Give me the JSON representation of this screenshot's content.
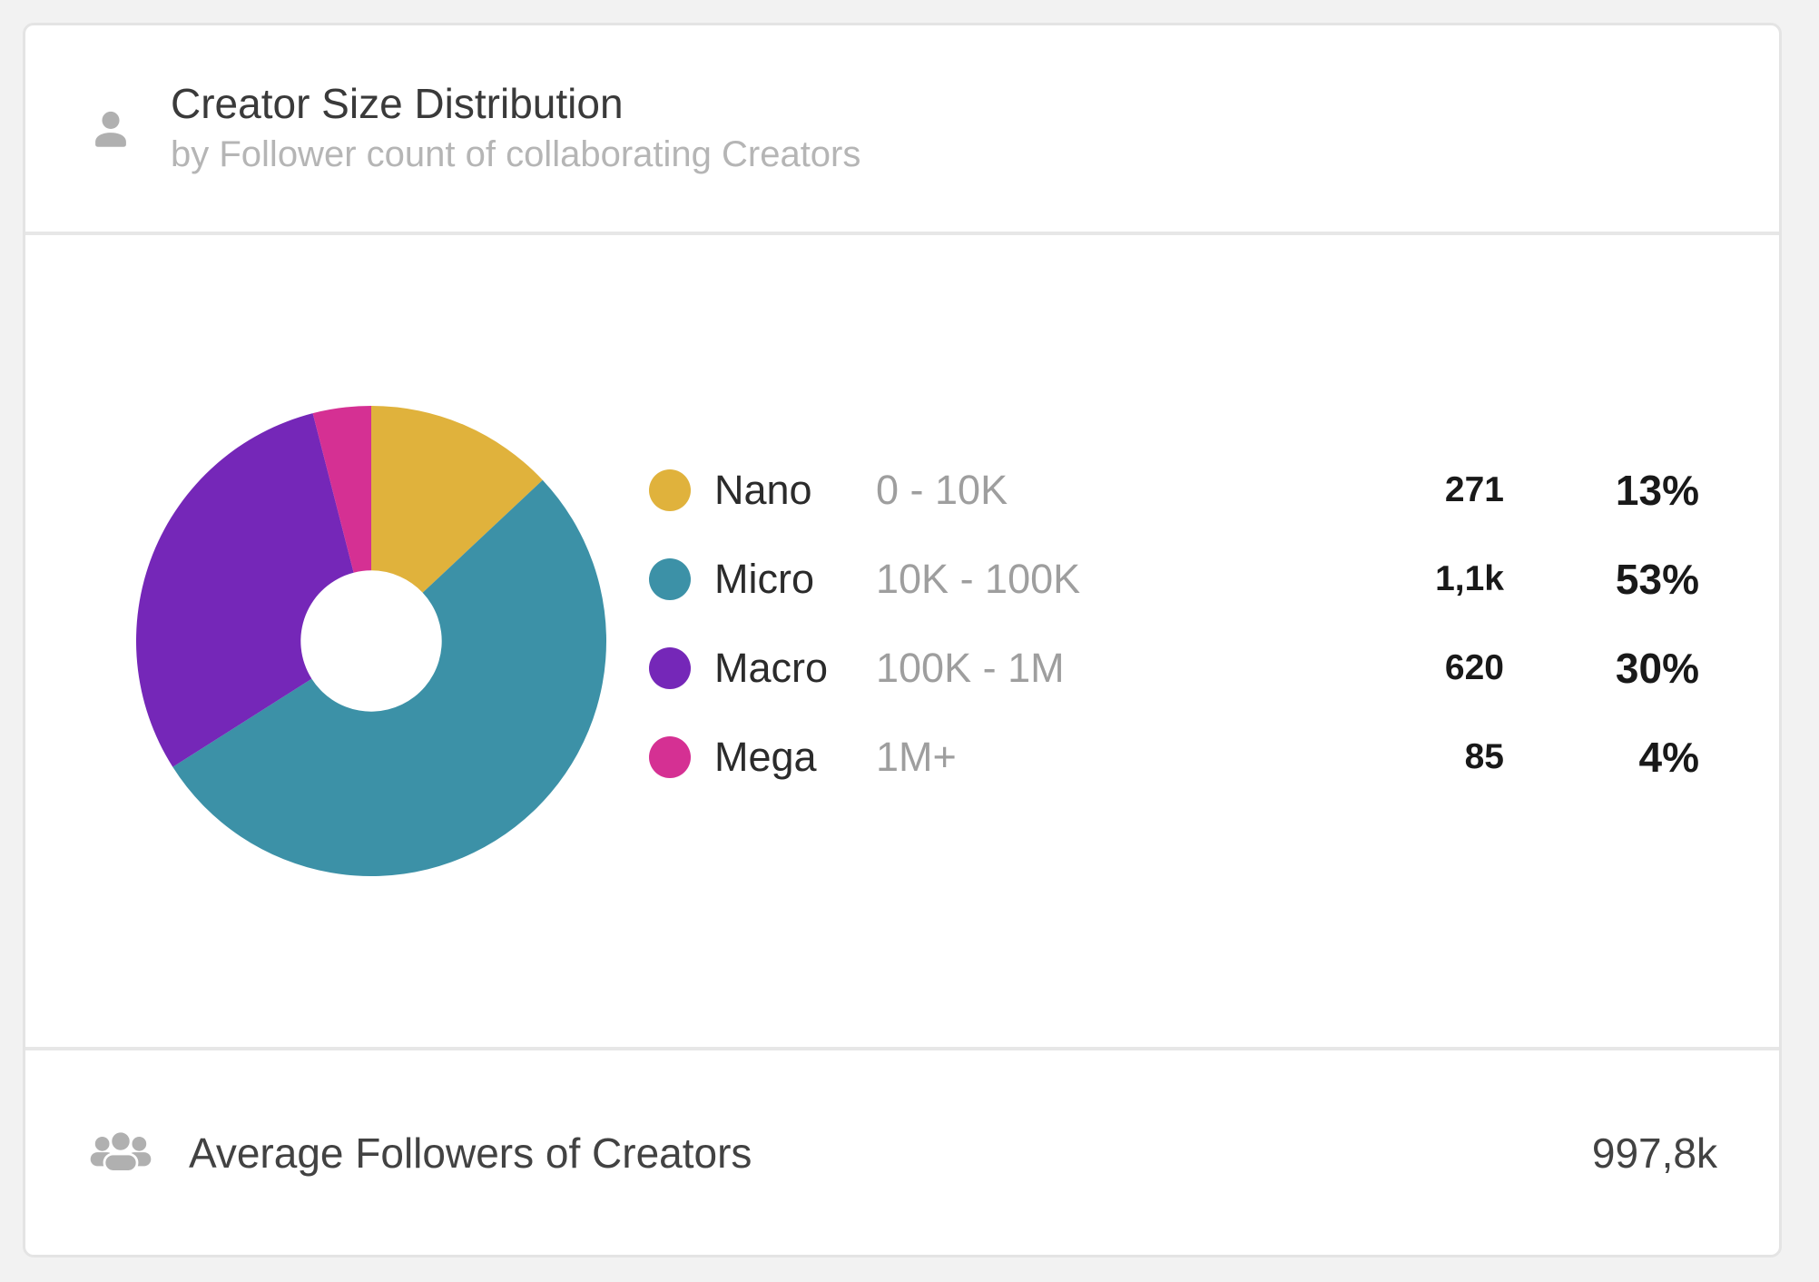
{
  "page": {
    "background": "#f2f2f2"
  },
  "card": {
    "header": {
      "icon": "person-icon",
      "title": "Creator Size Distribution",
      "subtitle": "by Follower count of collaborating Creators"
    },
    "footer": {
      "icon": "people-group-icon",
      "label": "Average Followers of Creators",
      "value": "997,8k"
    }
  },
  "chart_data": {
    "type": "pie",
    "title": "Creator Size Distribution",
    "subtitle": "by Follower count of collaborating Creators",
    "donut": true,
    "inner_radius_ratio": 0.3,
    "start_angle_deg": 0,
    "direction": "clockwise",
    "legend_position": "right",
    "segments": [
      {
        "label": "Nano",
        "range": "0 - 10K",
        "count": "271",
        "count_value": 271,
        "percent": "13%",
        "percent_value": 13,
        "color": "#e0b23c"
      },
      {
        "label": "Micro",
        "range": "10K - 100K",
        "count": "1,1k",
        "count_value": 1100,
        "percent": "53%",
        "percent_value": 53,
        "color": "#3c91a7"
      },
      {
        "label": "Macro",
        "range": "100K - 1M",
        "count": "620",
        "count_value": 620,
        "percent": "30%",
        "percent_value": 30,
        "color": "#7527b8"
      },
      {
        "label": "Mega",
        "range": "1M+",
        "count": "85",
        "count_value": 85,
        "percent": "4%",
        "percent_value": 4,
        "color": "#d53093"
      }
    ]
  }
}
